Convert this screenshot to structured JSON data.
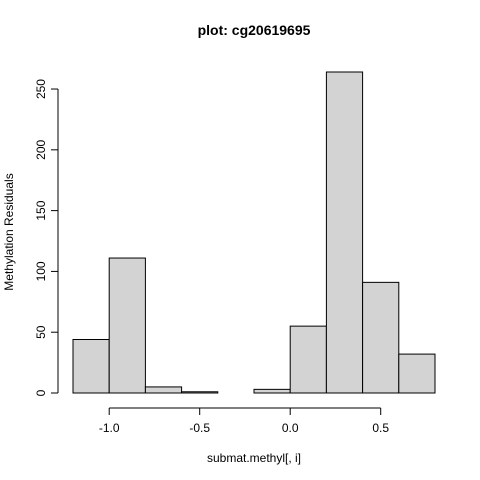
{
  "chart_data": {
    "type": "bar",
    "title": "plot: cg20619695",
    "xlabel": "submat.methyl[, i]",
    "ylabel": "Methylation Residuals",
    "bins": [
      {
        "start": -1.2,
        "end": -1.0,
        "count": 44
      },
      {
        "start": -1.0,
        "end": -0.8,
        "count": 111
      },
      {
        "start": -0.8,
        "end": -0.6,
        "count": 5
      },
      {
        "start": -0.6,
        "end": -0.4,
        "count": 1
      },
      {
        "start": -0.4,
        "end": -0.2,
        "count": 0
      },
      {
        "start": -0.2,
        "end": 0.0,
        "count": 3
      },
      {
        "start": 0.0,
        "end": 0.2,
        "count": 55
      },
      {
        "start": 0.2,
        "end": 0.4,
        "count": 264
      },
      {
        "start": 0.4,
        "end": 0.6,
        "count": 91
      },
      {
        "start": 0.6,
        "end": 0.8,
        "count": 32
      }
    ],
    "xlim": [
      -1.2,
      0.8
    ],
    "ylim": [
      0,
      264
    ],
    "x_ticks": [
      -1.0,
      -0.5,
      0.0,
      0.5
    ],
    "x_tick_labels": [
      "-1.0",
      "-0.5",
      "0.0",
      "0.5"
    ],
    "y_ticks": [
      0,
      50,
      100,
      150,
      200,
      250
    ],
    "y_tick_labels": [
      "0",
      "50",
      "100",
      "150",
      "200",
      "250"
    ],
    "bar_color": "#d3d3d3",
    "edge_color": "#000000",
    "grid": false
  }
}
